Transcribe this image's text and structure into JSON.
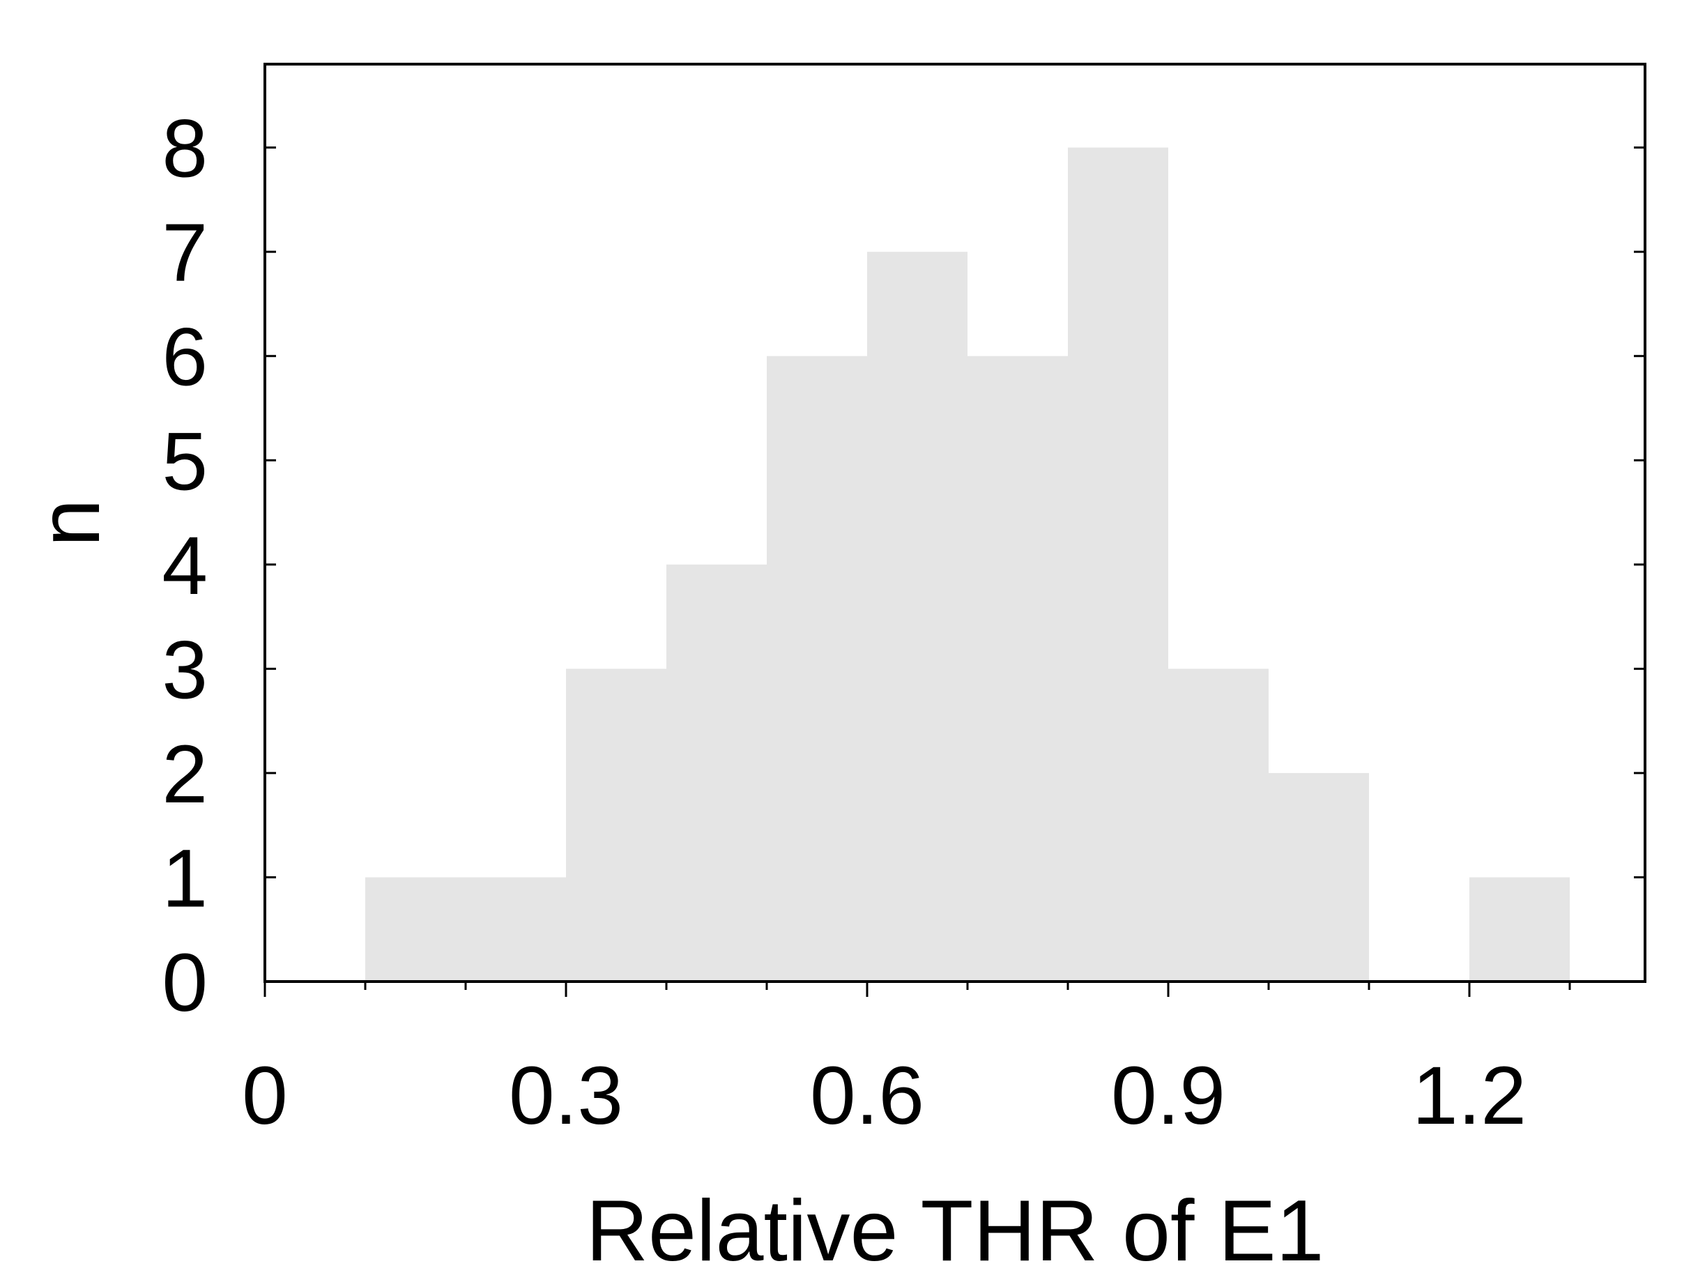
{
  "chart_data": {
    "type": "bar",
    "bins": [
      {
        "x0": 0.1,
        "x1": 0.2,
        "count": 1
      },
      {
        "x0": 0.2,
        "x1": 0.3,
        "count": 1
      },
      {
        "x0": 0.3,
        "x1": 0.4,
        "count": 3
      },
      {
        "x0": 0.4,
        "x1": 0.5,
        "count": 4
      },
      {
        "x0": 0.5,
        "x1": 0.6,
        "count": 6
      },
      {
        "x0": 0.6,
        "x1": 0.7,
        "count": 7
      },
      {
        "x0": 0.7,
        "x1": 0.8,
        "count": 6
      },
      {
        "x0": 0.8,
        "x1": 0.9,
        "count": 8
      },
      {
        "x0": 0.9,
        "x1": 1.0,
        "count": 3
      },
      {
        "x0": 1.0,
        "x1": 1.1,
        "count": 2
      },
      {
        "x0": 1.1,
        "x1": 1.2,
        "count": 0
      },
      {
        "x0": 1.2,
        "x1": 1.3,
        "count": 1
      }
    ],
    "xlabel": "Relative THR of E1",
    "ylabel": "n",
    "xlim": [
      0,
      1.375
    ],
    "ylim": [
      0,
      8.8
    ],
    "xticks": [
      0,
      0.3,
      0.6,
      0.9,
      1.2
    ],
    "xtick_labels": [
      "0",
      "0.3",
      "0.6",
      "0.9",
      "1.2"
    ],
    "xminor_step": 0.1,
    "yticks": [
      0,
      1,
      2,
      3,
      4,
      5,
      6,
      7,
      8
    ],
    "ytick_labels": [
      "0",
      "1",
      "2",
      "3",
      "4",
      "5",
      "6",
      "7",
      "8"
    ],
    "bar_color": "#e5e5e5",
    "grid": false
  }
}
